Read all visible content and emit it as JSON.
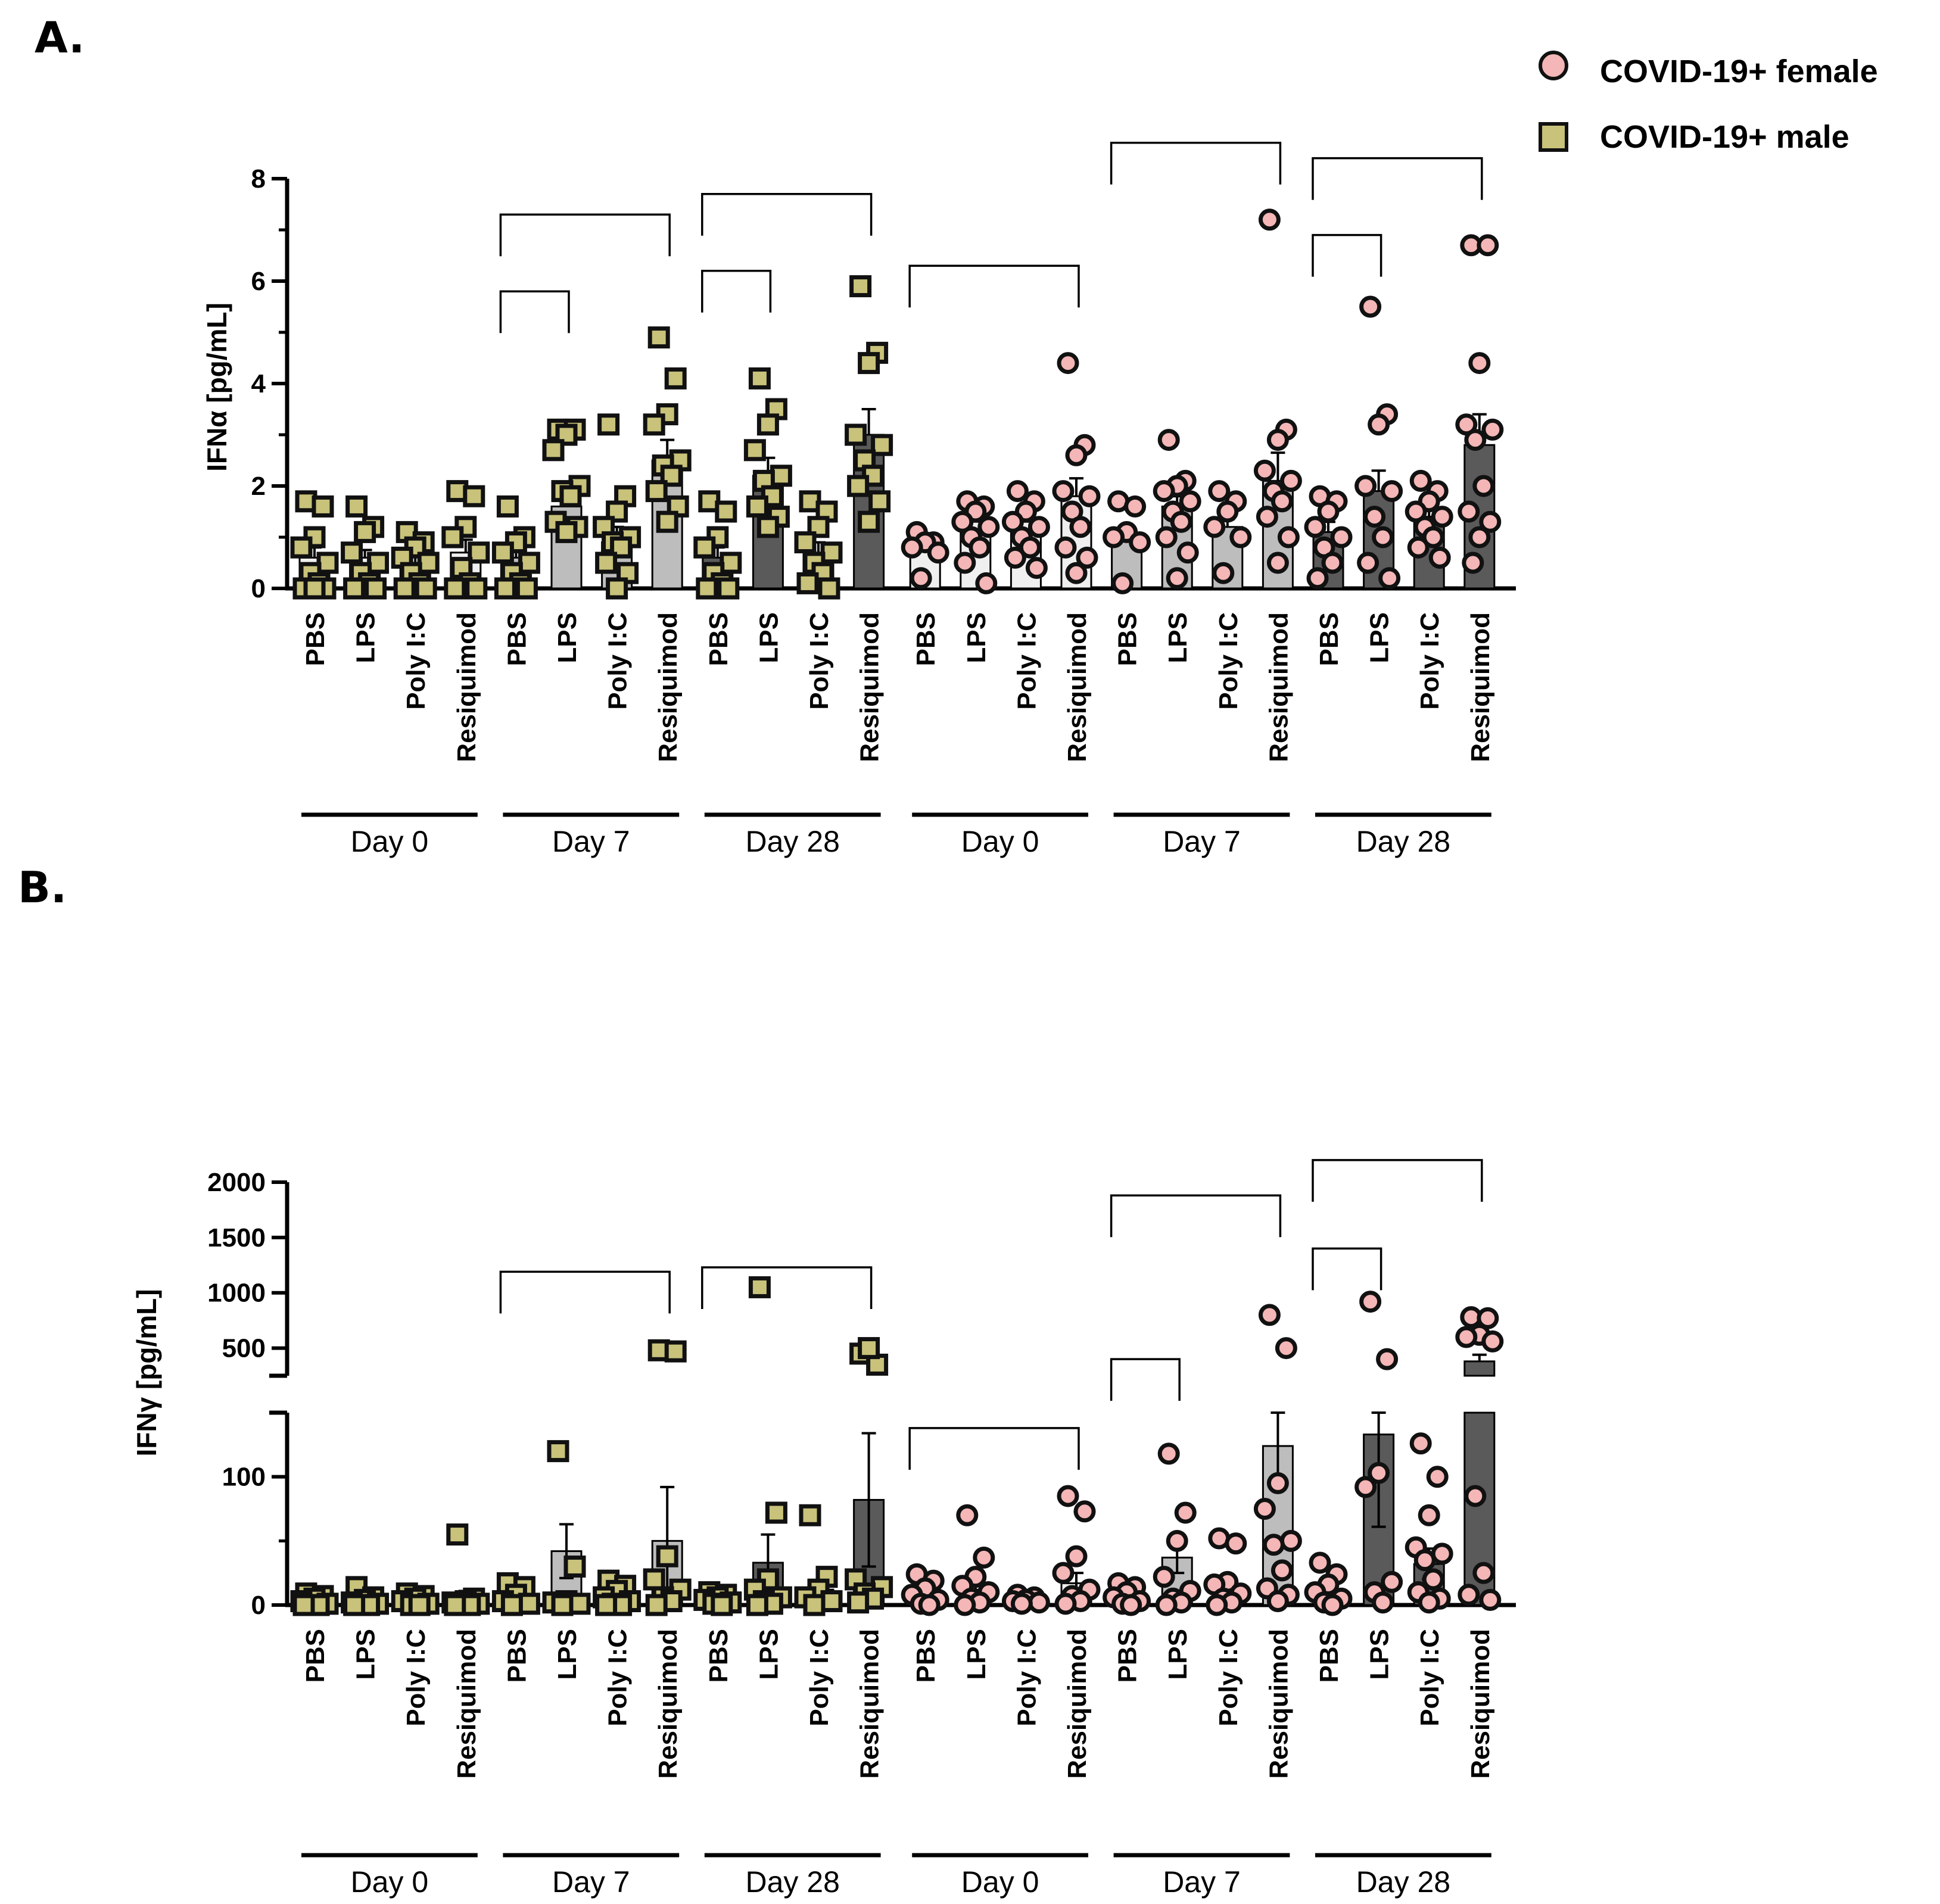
{
  "colors": {
    "female_marker": "#f4b6b6",
    "male_marker": "#c8c27a",
    "marker_stroke": "#111111",
    "bar_light": "#efefef",
    "bar_mid": "#bdbdbd",
    "bar_dark": "#5a5a5a",
    "axis": "#000000"
  },
  "legend": {
    "female_label": "COVID-19+ female",
    "male_label": "COVID-19+ male",
    "female_icon": "circle-marker-icon",
    "male_icon": "square-marker-icon"
  },
  "chart_data": [
    {
      "panel": "A.",
      "type": "bar",
      "ylabel": "IFNα [pg/mL]",
      "ylim": [
        0,
        8
      ],
      "yticks": [
        "0",
        "2",
        "4",
        "6",
        "8"
      ],
      "categories": [
        "PBS",
        "LPS",
        "Poly I:C",
        "Resiquimod",
        "PBS",
        "LPS",
        "Poly I:C",
        "Resiquimod",
        "PBS",
        "LPS",
        "Poly I:C",
        "Resiquimod",
        "PBS",
        "LPS",
        "Poly I:C",
        "Resiquimod",
        "PBS",
        "LPS",
        "Poly I:C",
        "Resiquimod",
        "PBS",
        "LPS",
        "Poly I:C",
        "Resiquimod"
      ],
      "groups": [
        "Day 0",
        "Day 7",
        "Day 28",
        "Day 0",
        "Day 7",
        "Day 28"
      ],
      "group_sex": [
        "male",
        "male",
        "male",
        "female",
        "female",
        "female"
      ],
      "group_shade": [
        "light",
        "mid",
        "dark",
        "light",
        "mid",
        "dark"
      ],
      "means": [
        0.6,
        0.6,
        0.5,
        0.7,
        0.6,
        1.6,
        0.9,
        2.5,
        0.6,
        2.2,
        0.7,
        3.0,
        0.9,
        1.3,
        1.3,
        1.8,
        1.0,
        1.6,
        1.2,
        2.1,
        1.1,
        1.9,
        1.4,
        2.8
      ],
      "errors": [
        0.2,
        0.15,
        0.15,
        0.25,
        0.15,
        0.3,
        0.3,
        0.4,
        0.2,
        0.35,
        0.2,
        0.5,
        0.1,
        0.15,
        0.15,
        0.35,
        0.15,
        0.2,
        0.15,
        0.55,
        0.2,
        0.4,
        0.15,
        0.6
      ],
      "points": [
        [
          1.7,
          1.6,
          1.0,
          0.8,
          0.5,
          0.3,
          0.1,
          0.0,
          0.0,
          0.0
        ],
        [
          1.6,
          1.2,
          1.1,
          0.7,
          0.5,
          0.3,
          0.1,
          0.0,
          0.0
        ],
        [
          1.1,
          0.9,
          0.8,
          0.6,
          0.5,
          0.3,
          0.1,
          0.0,
          0.0
        ],
        [
          1.9,
          1.8,
          1.2,
          1.0,
          0.7,
          0.4,
          0.1,
          0.0,
          0.0
        ],
        [
          1.6,
          1.0,
          0.9,
          0.7,
          0.5,
          0.3,
          0.1,
          0.0,
          0.0
        ],
        [
          3.1,
          3.1,
          3.0,
          2.7,
          2.0,
          1.9,
          1.8,
          1.3,
          1.2,
          1.1
        ],
        [
          3.2,
          1.8,
          1.5,
          1.2,
          1.0,
          0.9,
          0.8,
          0.5,
          0.3,
          0.0
        ],
        [
          4.9,
          4.1,
          3.4,
          3.2,
          2.5,
          2.4,
          2.2,
          1.9,
          1.6,
          1.3
        ],
        [
          1.7,
          1.5,
          1.0,
          0.8,
          0.5,
          0.3,
          0.1,
          0.0,
          0.0
        ],
        [
          4.1,
          3.5,
          3.2,
          2.7,
          2.2,
          2.1,
          1.8,
          1.6,
          1.4,
          1.2
        ],
        [
          1.7,
          1.5,
          1.2,
          0.9,
          0.7,
          0.5,
          0.3,
          0.1,
          0.0
        ],
        [
          5.9,
          4.6,
          4.4,
          3.0,
          2.8,
          2.5,
          2.2,
          2.0,
          1.7,
          1.3
        ],
        [
          1.1,
          0.9,
          0.9,
          0.8,
          0.7,
          0.2
        ],
        [
          1.7,
          1.6,
          1.5,
          1.3,
          1.2,
          1.0,
          0.8,
          0.5,
          0.1
        ],
        [
          1.9,
          1.7,
          1.5,
          1.3,
          1.2,
          1.0,
          0.8,
          0.6,
          0.4
        ],
        [
          4.4,
          2.8,
          2.6,
          1.9,
          1.8,
          1.5,
          1.2,
          0.8,
          0.6,
          0.3
        ],
        [
          1.7,
          1.6,
          1.1,
          1.0,
          0.9,
          0.1
        ],
        [
          2.9,
          2.1,
          2.0,
          1.9,
          1.7,
          1.5,
          1.3,
          1.0,
          0.7,
          0.2
        ],
        [
          1.9,
          1.7,
          1.5,
          1.2,
          1.0,
          0.3
        ],
        [
          7.2,
          3.1,
          2.9,
          2.3,
          2.1,
          1.9,
          1.7,
          1.4,
          1.0,
          0.5
        ],
        [
          1.8,
          1.7,
          1.5,
          1.2,
          1.0,
          0.8,
          0.5,
          0.2
        ],
        [
          5.5,
          3.4,
          3.2,
          2.0,
          1.9,
          1.4,
          1.0,
          0.5,
          0.2
        ],
        [
          2.1,
          1.9,
          1.7,
          1.5,
          1.4,
          1.2,
          1.0,
          0.8,
          0.6
        ],
        [
          6.7,
          6.7,
          4.4,
          3.2,
          3.1,
          2.9,
          2.0,
          1.5,
          1.3,
          1.0,
          0.5
        ]
      ],
      "brackets": [
        {
          "from": 4,
          "to": 5,
          "level": 5.8
        },
        {
          "from": 4,
          "to": 7,
          "level": 7.3
        },
        {
          "from": 8,
          "to": 9,
          "level": 6.2
        },
        {
          "from": 8,
          "to": 11,
          "level": 7.7
        },
        {
          "from": 12,
          "to": 15,
          "level": 6.3
        },
        {
          "from": 16,
          "to": 19,
          "level": 8.7
        },
        {
          "from": 20,
          "to": 21,
          "level": 6.9
        },
        {
          "from": 20,
          "to": 23,
          "level": 8.4
        }
      ]
    },
    {
      "panel": "B.",
      "type": "bar",
      "ylabel": "IFNγ [pg/mL]",
      "axis_break": true,
      "lower_ylim": [
        0,
        150
      ],
      "upper_ylim": [
        250,
        2000
      ],
      "yticks_lower": [
        "0",
        "100"
      ],
      "yticks_upper": [
        "500",
        "1000",
        "1500",
        "2000"
      ],
      "categories": [
        "PBS",
        "LPS",
        "Poly I:C",
        "Resiquimod",
        "PBS",
        "LPS",
        "Poly I:C",
        "Resiquimod",
        "PBS",
        "LPS",
        "Poly I:C",
        "Resiquimod",
        "PBS",
        "LPS",
        "Poly I:C",
        "Resiquimod",
        "PBS",
        "LPS",
        "Poly I:C",
        "Resiquimod",
        "PBS",
        "LPS",
        "Poly I:C",
        "Resiquimod"
      ],
      "groups": [
        "Day 0",
        "Day 7",
        "Day 28",
        "Day 0",
        "Day 7",
        "Day 28"
      ],
      "group_sex": [
        "male",
        "male",
        "male",
        "female",
        "female",
        "female"
      ],
      "group_shade": [
        "light",
        "mid",
        "dark",
        "light",
        "mid",
        "dark"
      ],
      "means": [
        3,
        4,
        4,
        6,
        8,
        42,
        10,
        50,
        5,
        33,
        12,
        82,
        12,
        12,
        4,
        17,
        9,
        37,
        13,
        124,
        12,
        133,
        32,
        380
      ],
      "errors": [
        2,
        2,
        2,
        5,
        4,
        21,
        4,
        42,
        3,
        22,
        7,
        52,
        4,
        6,
        2,
        8,
        3,
        12,
        5,
        28,
        4,
        72,
        12,
        60
      ],
      "points": [
        [
          9,
          7,
          5,
          3,
          1,
          0,
          0,
          0
        ],
        [
          14,
          6,
          4,
          2,
          1,
          0,
          0,
          0
        ],
        [
          9,
          7,
          5,
          3,
          1,
          0,
          0
        ],
        [
          55,
          5,
          3,
          2,
          1,
          0,
          0,
          0
        ],
        [
          17,
          14,
          8,
          3,
          1,
          0
        ],
        [
          120,
          30,
          3,
          2,
          1,
          0
        ],
        [
          19,
          15,
          11,
          6,
          3,
          1,
          0,
          0
        ],
        [
          480,
          470,
          38,
          20,
          12,
          6,
          3,
          0
        ],
        [
          10,
          8,
          6,
          4,
          2,
          1,
          0
        ],
        [
          1050,
          72,
          20,
          12,
          6,
          3,
          1,
          0
        ],
        [
          70,
          22,
          12,
          6,
          3,
          0
        ],
        [
          450,
          350,
          500,
          20,
          14,
          9,
          5,
          2
        ],
        [
          24,
          19,
          13,
          8,
          4,
          1,
          0
        ],
        [
          70,
          37,
          22,
          15,
          10,
          5,
          2,
          0
        ],
        [
          8,
          6,
          4,
          3,
          2,
          1
        ],
        [
          85,
          73,
          38,
          25,
          12,
          7,
          3,
          1
        ],
        [
          17,
          14,
          10,
          6,
          3,
          1,
          0
        ],
        [
          118,
          72,
          50,
          22,
          11,
          5,
          2,
          0
        ],
        [
          52,
          48,
          18,
          16,
          9,
          5,
          2,
          0
        ],
        [
          800,
          500,
          95,
          75,
          50,
          47,
          27,
          13,
          8,
          3
        ],
        [
          33,
          24,
          16,
          10,
          5,
          2,
          0
        ],
        [
          920,
          400,
          103,
          92,
          18,
          10,
          2
        ],
        [
          126,
          100,
          70,
          45,
          40,
          35,
          20,
          10,
          5,
          2
        ],
        [
          780,
          770,
          620,
          600,
          560,
          85,
          25,
          8,
          4
        ]
      ],
      "brackets": [
        {
          "from": 4,
          "to": 7,
          "level": 1190
        },
        {
          "from": 8,
          "to": 11,
          "level": 1230
        },
        {
          "from": 12,
          "to": 15,
          "level": 138
        },
        {
          "from": 16,
          "to": 17,
          "level": 400
        },
        {
          "from": 16,
          "to": 19,
          "level": 1880
        },
        {
          "from": 20,
          "to": 21,
          "level": 1400
        },
        {
          "from": 20,
          "to": 23,
          "level": 2200
        }
      ]
    }
  ]
}
